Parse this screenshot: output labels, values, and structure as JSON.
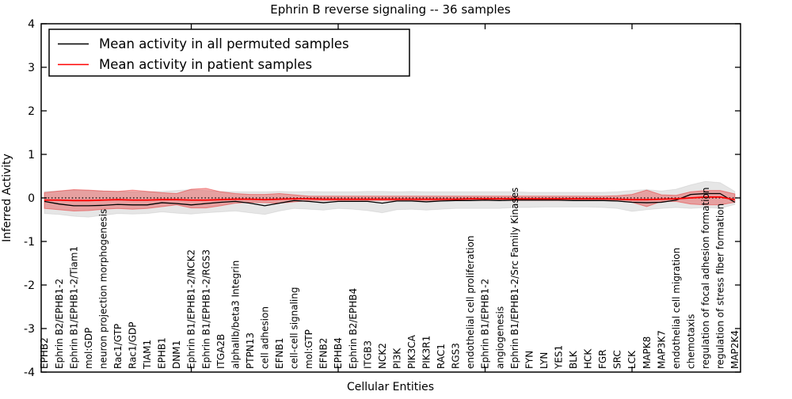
{
  "figure": {
    "title": "Ephrin B reverse signaling -- 36 samples",
    "xlabel": "Cellular Entities",
    "ylabel": "Inferred Activity"
  },
  "legend": {
    "position": "upper left",
    "items": [
      {
        "label": "Mean activity in all permuted samples",
        "color": "#000000"
      },
      {
        "label": "Mean activity in patient samples",
        "color": "#ff0000"
      }
    ]
  },
  "chart_data": {
    "type": "line",
    "title": "Ephrin B reverse signaling -- 36 samples",
    "xlabel": "Cellular Entities",
    "ylabel": "Inferred Activity",
    "ylim": [
      -4,
      4
    ],
    "yticks": [
      -4,
      -3,
      -2,
      -1,
      0,
      1,
      2,
      3,
      4
    ],
    "xticks": [
      10,
      20,
      30,
      40
    ],
    "grid": false,
    "legend_position": "upper left",
    "zero_line": {
      "y": 0,
      "style": "dotted",
      "color": "#000000"
    },
    "categories": [
      "EPHB2",
      "Ephrin B2/EPHB1-2",
      "Ephrin B1/EPHB1-2/Tiam1",
      "mol:GDP",
      "neuron projection morphogenesis",
      "Rac1/GTP",
      "Rac1/GDP",
      "TIAM1",
      "EPHB1",
      "DNM1",
      "Ephrin B1/EPHB1-2/NCK2",
      "Ephrin B1/EPHB1-2/RGS3",
      "ITGA2B",
      "alphaIIb/beta3 Integrin",
      "PTPN13",
      "cell adhesion",
      "EFNB1",
      "cell-cell signaling",
      "mol:GTP",
      "EFNB2",
      "EPHB4",
      "Ephrin B2/EPHB4",
      "ITGB3",
      "NCK2",
      "PI3K",
      "PIK3CA",
      "PIK3R1",
      "RAC1",
      "RGS3",
      "endothelial cell proliferation",
      "Ephrin B1/EPHB1-2",
      "angiogenesis",
      "Ephrin B1/EPHB1-2/Src Family Kinases",
      "FYN",
      "LYN",
      "YES1",
      "BLK",
      "HCK",
      "FGR",
      "SRC",
      "LCK",
      "MAPK8",
      "MAP3K7",
      "endothelial cell migration",
      "chemotaxis",
      "regulation of focal adhesion formation",
      "regulation of stress fiber formation",
      "MAP2K4"
    ],
    "series": [
      {
        "name": "Mean activity in all permuted samples",
        "color": "#000000",
        "line_width": 1.3,
        "band_color": "rgba(60,60,60,0.13)",
        "band_edge": "rgba(60,60,60,0.10)",
        "values": [
          -0.08,
          -0.14,
          -0.18,
          -0.18,
          -0.17,
          -0.15,
          -0.16,
          -0.16,
          -0.11,
          -0.13,
          -0.16,
          -0.13,
          -0.1,
          -0.08,
          -0.12,
          -0.18,
          -0.12,
          -0.06,
          -0.08,
          -0.11,
          -0.08,
          -0.08,
          -0.08,
          -0.12,
          -0.07,
          -0.07,
          -0.09,
          -0.07,
          -0.06,
          -0.06,
          -0.05,
          -0.06,
          -0.05,
          -0.05,
          -0.05,
          -0.05,
          -0.06,
          -0.06,
          -0.06,
          -0.07,
          -0.1,
          -0.11,
          -0.1,
          -0.05,
          0.08,
          0.1,
          0.1,
          -0.1
        ],
        "band_upper": [
          0.15,
          0.16,
          0.18,
          0.17,
          0.16,
          0.15,
          0.14,
          0.14,
          0.15,
          0.17,
          0.19,
          0.17,
          0.15,
          0.14,
          0.14,
          0.14,
          0.15,
          0.14,
          0.15,
          0.14,
          0.14,
          0.14,
          0.15,
          0.15,
          0.14,
          0.15,
          0.14,
          0.14,
          0.14,
          0.14,
          0.14,
          0.14,
          0.14,
          0.13,
          0.13,
          0.13,
          0.13,
          0.13,
          0.13,
          0.14,
          0.17,
          0.19,
          0.16,
          0.2,
          0.3,
          0.38,
          0.35,
          0.15
        ],
        "band_lower": [
          -0.36,
          -0.38,
          -0.42,
          -0.44,
          -0.4,
          -0.36,
          -0.37,
          -0.36,
          -0.32,
          -0.35,
          -0.37,
          -0.34,
          -0.32,
          -0.3,
          -0.34,
          -0.38,
          -0.3,
          -0.24,
          -0.26,
          -0.28,
          -0.24,
          -0.26,
          -0.29,
          -0.34,
          -0.27,
          -0.26,
          -0.28,
          -0.26,
          -0.24,
          -0.24,
          -0.24,
          -0.24,
          -0.22,
          -0.22,
          -0.21,
          -0.21,
          -0.21,
          -0.21,
          -0.22,
          -0.24,
          -0.31,
          -0.27,
          -0.24,
          -0.22,
          -0.24,
          -0.22,
          -0.24,
          -0.15
        ]
      },
      {
        "name": "Mean activity in patient samples",
        "color": "#ff0000",
        "line_width": 1.8,
        "band_color": "rgba(230,30,30,0.35)",
        "band_edge": "rgba(230,30,30,0.45)",
        "values": [
          -0.05,
          -0.05,
          -0.06,
          -0.06,
          -0.05,
          -0.04,
          -0.05,
          -0.05,
          -0.04,
          -0.04,
          -0.05,
          -0.05,
          -0.04,
          -0.03,
          -0.03,
          -0.04,
          -0.03,
          -0.02,
          -0.02,
          -0.03,
          -0.03,
          -0.03,
          -0.03,
          -0.03,
          -0.03,
          -0.03,
          -0.03,
          -0.03,
          -0.03,
          -0.02,
          -0.02,
          -0.02,
          -0.02,
          -0.02,
          -0.02,
          -0.02,
          -0.02,
          -0.02,
          -0.02,
          -0.03,
          -0.04,
          -0.04,
          -0.03,
          -0.02,
          0.0,
          0.02,
          0.02,
          -0.04
        ],
        "band_upper": [
          0.12,
          0.16,
          0.19,
          0.18,
          0.16,
          0.15,
          0.18,
          0.15,
          0.12,
          0.1,
          0.2,
          0.22,
          0.14,
          0.1,
          0.08,
          0.08,
          0.1,
          0.07,
          0.04,
          0.04,
          0.04,
          0.04,
          0.04,
          0.04,
          0.04,
          0.04,
          0.04,
          0.04,
          0.04,
          0.04,
          0.04,
          0.04,
          0.04,
          0.04,
          0.04,
          0.04,
          0.04,
          0.04,
          0.04,
          0.05,
          0.08,
          0.18,
          0.07,
          0.06,
          0.14,
          0.17,
          0.17,
          0.09
        ],
        "band_lower": [
          -0.24,
          -0.27,
          -0.3,
          -0.29,
          -0.26,
          -0.24,
          -0.26,
          -0.24,
          -0.2,
          -0.16,
          -0.23,
          -0.23,
          -0.18,
          -0.12,
          -0.1,
          -0.11,
          -0.12,
          -0.09,
          -0.06,
          -0.06,
          -0.06,
          -0.06,
          -0.06,
          -0.06,
          -0.06,
          -0.06,
          -0.06,
          -0.06,
          -0.06,
          -0.06,
          -0.06,
          -0.06,
          -0.06,
          -0.06,
          -0.06,
          -0.06,
          -0.06,
          -0.06,
          -0.06,
          -0.07,
          -0.1,
          -0.2,
          -0.08,
          -0.08,
          -0.14,
          -0.16,
          -0.16,
          -0.1
        ]
      }
    ]
  }
}
